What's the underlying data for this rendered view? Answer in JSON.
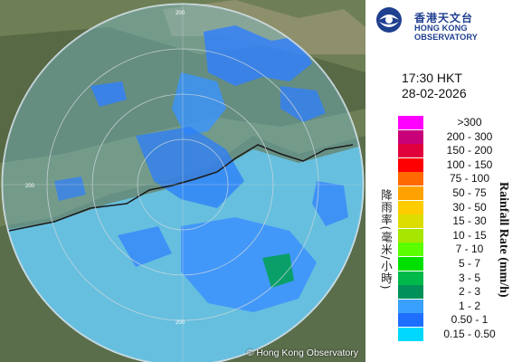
{
  "logo": {
    "name_cn": "香港天文台",
    "name_en": "HONG KONG OBSERVATORY"
  },
  "timestamp": {
    "time": "17:30 HKT",
    "date": "28-02-2026"
  },
  "legend": {
    "title_en": "Rainfall Rate (mm/h)",
    "title_cn": "降雨率(毫米/小時)",
    "items": [
      {
        "label": ">300",
        "color": "#ff00ff"
      },
      {
        "label": "200 - 300",
        "color": "#c8007a"
      },
      {
        "label": "150 - 200",
        "color": "#e0003c"
      },
      {
        "label": "100 - 150",
        "color": "#ff0000"
      },
      {
        "label": "75 - 100",
        "color": "#ff6a00"
      },
      {
        "label": "50 - 75",
        "color": "#ffa200"
      },
      {
        "label": "30 - 50",
        "color": "#ffcc00"
      },
      {
        "label": "15 - 30",
        "color": "#dcdc00"
      },
      {
        "label": "10 - 15",
        "color": "#a6e600"
      },
      {
        "label": "7 - 10",
        "color": "#5cff00"
      },
      {
        "label": "5 - 7",
        "color": "#00e000"
      },
      {
        "label": "3 - 5",
        "color": "#00b94a"
      },
      {
        "label": "2 - 3",
        "color": "#00915a"
      },
      {
        "label": "1 - 2",
        "color": "#3aa0ff"
      },
      {
        "label": "0.50 - 1",
        "color": "#1f6fff"
      },
      {
        "label": "0.15 - 0.50",
        "color": "#00d8ff"
      }
    ]
  },
  "copyright": "© Hong Kong Observatory",
  "map_ring_labels": [
    "200",
    "200",
    "200"
  ]
}
